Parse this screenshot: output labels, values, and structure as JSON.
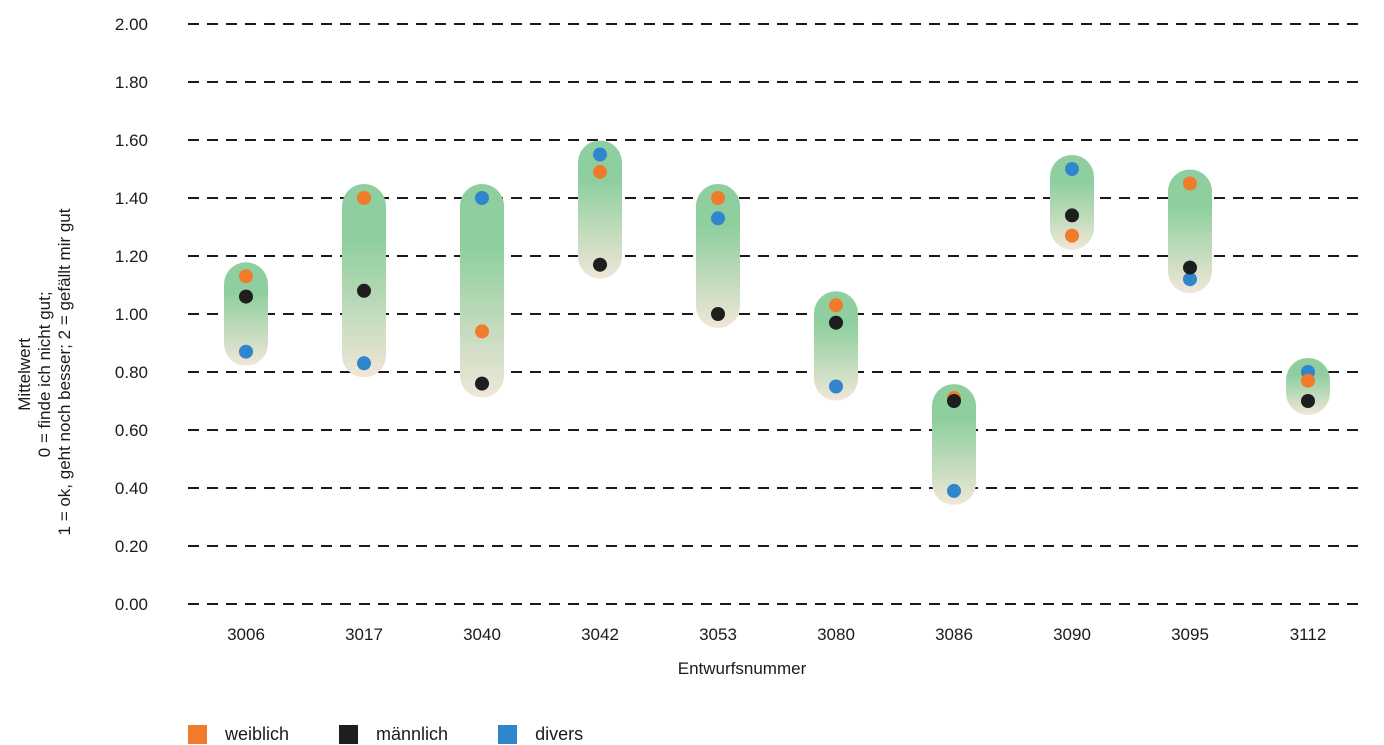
{
  "chart_data": {
    "type": "scatter",
    "categories": [
      "3006",
      "3017",
      "3040",
      "3042",
      "3053",
      "3080",
      "3086",
      "3090",
      "3095",
      "3112"
    ],
    "series": [
      {
        "name": "weiblich",
        "color": "#f07b2a",
        "values": [
          1.13,
          1.4,
          0.94,
          1.49,
          1.4,
          1.03,
          0.71,
          1.27,
          1.45,
          0.77
        ]
      },
      {
        "name": "männlich",
        "color": "#1e1e1e",
        "values": [
          1.06,
          1.08,
          0.76,
          1.17,
          1.0,
          0.97,
          0.7,
          1.34,
          1.16,
          0.7
        ]
      },
      {
        "name": "divers",
        "color": "#2f86cc",
        "values": [
          0.87,
          0.83,
          1.4,
          1.55,
          1.33,
          0.75,
          0.39,
          1.5,
          1.12,
          0.8
        ]
      }
    ],
    "ylim": [
      0,
      2
    ],
    "yticks": [
      "0.00",
      "0.20",
      "0.40",
      "0.60",
      "0.80",
      "1.00",
      "1.20",
      "1.40",
      "1.60",
      "1.80",
      "2.00"
    ],
    "ylabel": [
      "Mittelwert",
      "0 = finde ich nicht gut;",
      "1 = ok, geht noch besser; 2 = gefällt mir gut"
    ],
    "xlabel": "Entwurfsnummer",
    "grid": true,
    "legend_position": "bottom-left",
    "colors": {
      "range_top": "#8fcf9f",
      "range_bottom": "#f0e6d8",
      "grid": "#1a1a1a"
    }
  },
  "legend": [
    {
      "label": "weiblich",
      "color": "#f07b2a"
    },
    {
      "label": "männlich",
      "color": "#1e1e1e"
    },
    {
      "label": "divers",
      "color": "#2f86cc"
    }
  ]
}
